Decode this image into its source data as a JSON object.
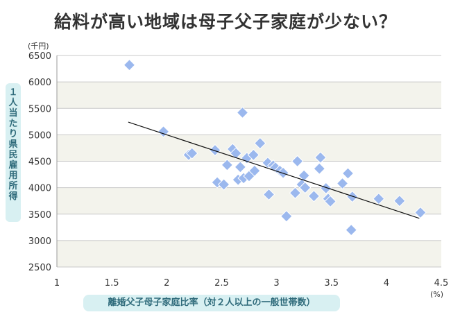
{
  "chart_data": {
    "type": "scatter",
    "title": "給料が高い地域は母子父子家庭が少ない？",
    "xlabel": "離婚父子母子家庭比率（対２人以上の一般世帯数）",
    "ylabel": "１人当たり県民雇用所得",
    "x_unit": "(%)",
    "y_unit": "(千円)",
    "xlim": [
      1,
      4.5
    ],
    "ylim": [
      2500,
      6500
    ],
    "x_ticks": [
      "1",
      "1.5",
      "2",
      "2.5",
      "3",
      "3.5",
      "4",
      "4.5"
    ],
    "y_ticks": [
      "2500",
      "3000",
      "3500",
      "4000",
      "4500",
      "5000",
      "5500",
      "6000",
      "6500"
    ],
    "grid": true,
    "marker_color": "#9bb8ee",
    "trendline": {
      "x": [
        1.65,
        4.3
      ],
      "y": [
        5240,
        3420
      ]
    },
    "points": [
      {
        "x": 1.66,
        "y": 6320
      },
      {
        "x": 1.97,
        "y": 5060
      },
      {
        "x": 2.2,
        "y": 4620
      },
      {
        "x": 2.23,
        "y": 4650
      },
      {
        "x": 2.44,
        "y": 4710
      },
      {
        "x": 2.46,
        "y": 4100
      },
      {
        "x": 2.52,
        "y": 4060
      },
      {
        "x": 2.55,
        "y": 4430
      },
      {
        "x": 2.6,
        "y": 4730
      },
      {
        "x": 2.63,
        "y": 4650
      },
      {
        "x": 2.65,
        "y": 4150
      },
      {
        "x": 2.67,
        "y": 4390
      },
      {
        "x": 2.69,
        "y": 5420
      },
      {
        "x": 2.7,
        "y": 4180
      },
      {
        "x": 2.73,
        "y": 4560
      },
      {
        "x": 2.75,
        "y": 4220
      },
      {
        "x": 2.79,
        "y": 4620
      },
      {
        "x": 2.8,
        "y": 4320
      },
      {
        "x": 2.85,
        "y": 4840
      },
      {
        "x": 2.92,
        "y": 4470
      },
      {
        "x": 2.93,
        "y": 3870
      },
      {
        "x": 2.97,
        "y": 4420
      },
      {
        "x": 2.99,
        "y": 4380
      },
      {
        "x": 3.03,
        "y": 4320
      },
      {
        "x": 3.06,
        "y": 4280
      },
      {
        "x": 3.09,
        "y": 3460
      },
      {
        "x": 3.17,
        "y": 3900
      },
      {
        "x": 3.19,
        "y": 4500
      },
      {
        "x": 3.23,
        "y": 4060
      },
      {
        "x": 3.25,
        "y": 4230
      },
      {
        "x": 3.26,
        "y": 4000
      },
      {
        "x": 3.34,
        "y": 3840
      },
      {
        "x": 3.39,
        "y": 4360
      },
      {
        "x": 3.4,
        "y": 4570
      },
      {
        "x": 3.45,
        "y": 3990
      },
      {
        "x": 3.47,
        "y": 3790
      },
      {
        "x": 3.49,
        "y": 3740
      },
      {
        "x": 3.6,
        "y": 4080
      },
      {
        "x": 3.65,
        "y": 4270
      },
      {
        "x": 3.68,
        "y": 3200
      },
      {
        "x": 3.69,
        "y": 3830
      },
      {
        "x": 3.93,
        "y": 3790
      },
      {
        "x": 4.12,
        "y": 3750
      },
      {
        "x": 4.31,
        "y": 3530
      }
    ]
  }
}
